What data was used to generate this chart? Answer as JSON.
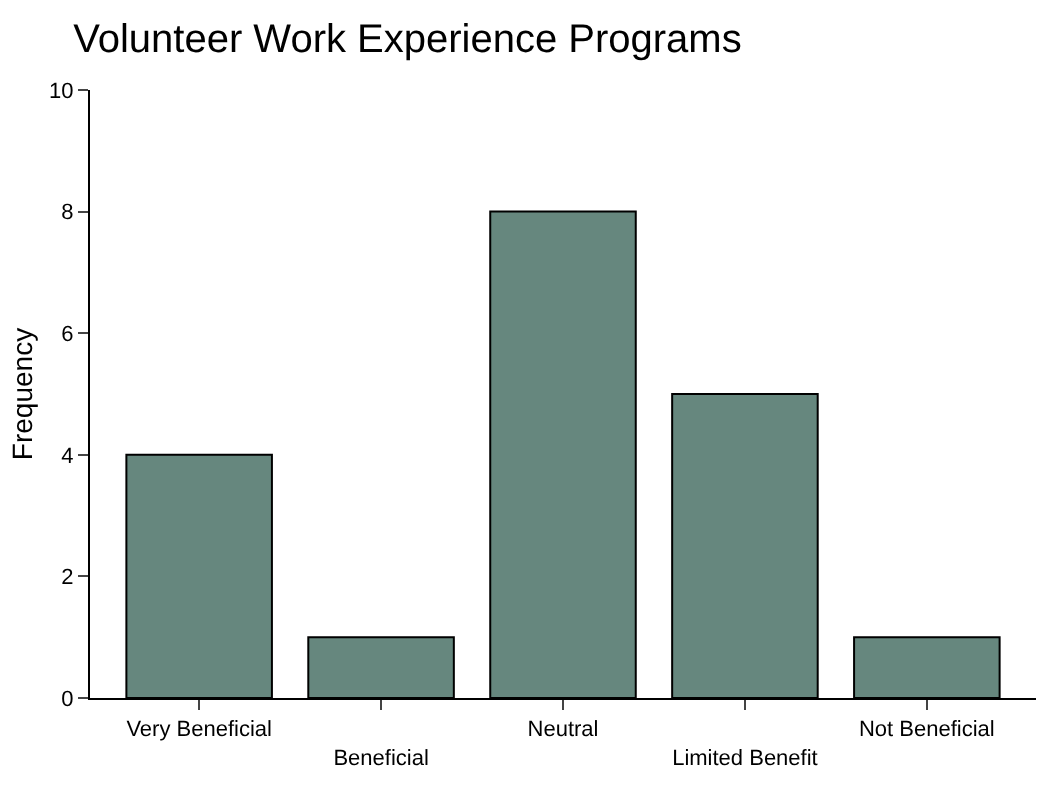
{
  "chart_data": {
    "type": "bar",
    "title": "Volunteer Work Experience Programs",
    "ylabel": "Frequency",
    "categories": [
      "Very Beneficial",
      "Beneficial",
      "Neutral",
      "Limited Benefit",
      "Not Beneficial"
    ],
    "values": [
      4,
      1,
      8,
      5,
      1
    ],
    "color": "#66877e",
    "ylim": [
      0,
      10
    ],
    "yticks": [
      0,
      2,
      4,
      6,
      8,
      10
    ],
    "legend": false
  }
}
